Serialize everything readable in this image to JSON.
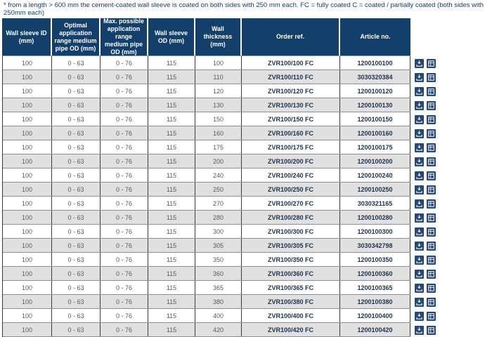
{
  "disclaimer": "* from a length > 600 mm the cement-coated wall sleeve is coated on both sides with 250 mm each. FC = fully coated C = coated / partially coated (both sides with 250mm each)",
  "table": {
    "columns": [
      "Wall sleeve ID (mm)",
      "Optimal application range medium pipe OD (mm)",
      "Max. possible application range medium pipe OD (mm)",
      "Wall sleeve OD (mm)",
      "Wall thickness (mm)",
      "Order ref.",
      "Article no."
    ],
    "rows": [
      [
        "100",
        "0 - 63",
        "0 - 76",
        "115",
        "100",
        "ZVR100/100 FC",
        "1200100100"
      ],
      [
        "100",
        "0 - 63",
        "0 - 76",
        "115",
        "110",
        "ZVR100/110 FC",
        "3030320384"
      ],
      [
        "100",
        "0 - 63",
        "0 - 76",
        "115",
        "120",
        "ZVR100/120 FC",
        "1200100120"
      ],
      [
        "100",
        "0 - 63",
        "0 - 76",
        "115",
        "130",
        "ZVR100/130 FC",
        "1200100130"
      ],
      [
        "100",
        "0 - 63",
        "0 - 76",
        "115",
        "150",
        "ZVR100/150 FC",
        "1200100150"
      ],
      [
        "100",
        "0 - 63",
        "0 - 76",
        "115",
        "160",
        "ZVR100/160 FC",
        "1200100160"
      ],
      [
        "100",
        "0 - 63",
        "0 - 76",
        "115",
        "175",
        "ZVR100/175 FC",
        "1200100175"
      ],
      [
        "100",
        "0 - 63",
        "0 - 76",
        "115",
        "200",
        "ZVR100/200 FC",
        "1200100200"
      ],
      [
        "100",
        "0 - 63",
        "0 - 76",
        "115",
        "240",
        "ZVR100/240 FC",
        "1200100240"
      ],
      [
        "100",
        "0 - 63",
        "0 - 76",
        "115",
        "250",
        "ZVR100/250 FC",
        "1200100250"
      ],
      [
        "100",
        "0 - 63",
        "0 - 76",
        "115",
        "270",
        "ZVR100/270 FC",
        "3030321165"
      ],
      [
        "100",
        "0 - 63",
        "0 - 76",
        "115",
        "280",
        "ZVR100/280 FC",
        "1200100280"
      ],
      [
        "100",
        "0 - 63",
        "0 - 76",
        "115",
        "300",
        "ZVR100/300 FC",
        "1200100300"
      ],
      [
        "100",
        "0 - 63",
        "0 - 76",
        "115",
        "305",
        "ZVR100/305 FC",
        "3030342798"
      ],
      [
        "100",
        "0 - 63",
        "0 - 76",
        "115",
        "350",
        "ZVR100/350 FC",
        "1200100350"
      ],
      [
        "100",
        "0 - 63",
        "0 - 76",
        "115",
        "360",
        "ZVR100/360 FC",
        "1200100360"
      ],
      [
        "100",
        "0 - 63",
        "0 - 76",
        "115",
        "365",
        "ZVR100/365 FC",
        "1200100365"
      ],
      [
        "100",
        "0 - 63",
        "0 - 76",
        "115",
        "380",
        "ZVR100/380 FC",
        "1200100380"
      ],
      [
        "100",
        "0 - 63",
        "0 - 76",
        "115",
        "400",
        "ZVR100/400 FC",
        "1200100400"
      ],
      [
        "100",
        "0 - 63",
        "0 - 76",
        "115",
        "420",
        "ZVR100/420 FC",
        "1200100420"
      ]
    ],
    "cell_names": [
      "cell-wall-sleeve-id",
      "cell-optimal-range",
      "cell-max-range",
      "cell-wall-sleeve-od",
      "cell-wall-thickness",
      "cell-order-ref",
      "cell-article-no"
    ]
  },
  "row_actions": {
    "icons": [
      "download-icon",
      "table-icon"
    ],
    "buttons": [
      "download-button",
      "datasheet-button"
    ]
  },
  "colors": {
    "header_bg": "#133f6b",
    "stripe_row_bg": "#e0e0e0",
    "icon_bg": "#27496f",
    "footnote_text": "#133f6b",
    "cell_text": "#5a5a5a",
    "bold_cell_text": "#22334e",
    "row_border": "#8f8f8f",
    "column_border": "#3a3a3a"
  }
}
